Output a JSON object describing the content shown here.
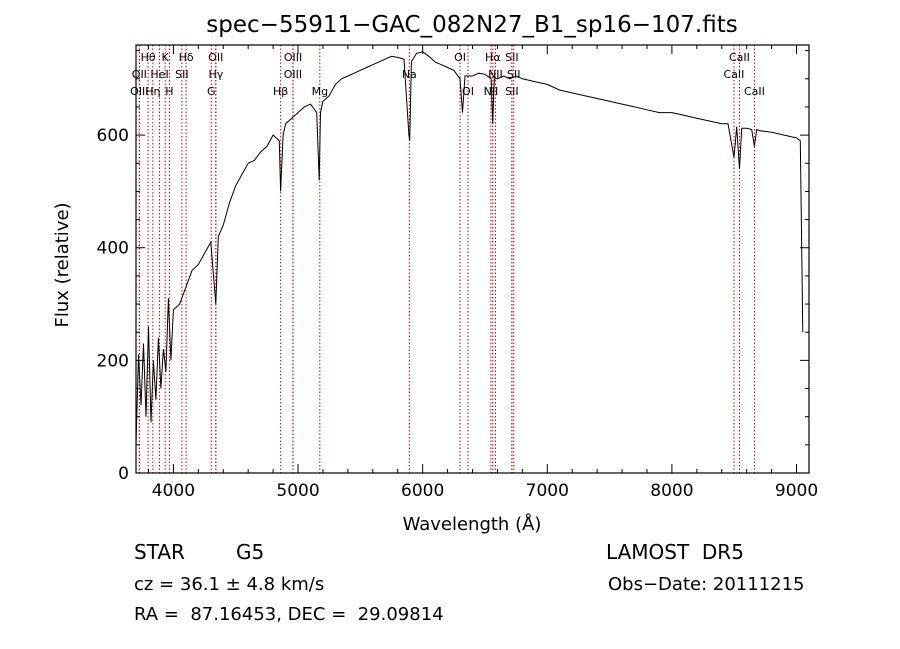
{
  "chart_data": {
    "type": "line",
    "title": "spec−55911−GAC_082N27_B1_sp16−107.fits",
    "xlabel": "Wavelength (Å)",
    "ylabel": "Flux (relative)",
    "xlim": [
      3700,
      9100
    ],
    "ylim": [
      0,
      760
    ],
    "xticks": [
      4000,
      5000,
      6000,
      7000,
      8000,
      9000
    ],
    "yticks": [
      0,
      200,
      400,
      600
    ],
    "grid": false,
    "line_color": "#000000",
    "marker_color": "#cc0000",
    "series": [
      {
        "x": [
          3700,
          3720,
          3740,
          3760,
          3780,
          3800,
          3820,
          3840,
          3860,
          3880,
          3900,
          3920,
          3940,
          3960,
          3980,
          4000,
          4050,
          4100,
          4150,
          4200,
          4250,
          4300,
          4340,
          4360,
          4400,
          4450,
          4500,
          4550,
          4600,
          4650,
          4700,
          4750,
          4800,
          4850,
          4860,
          4880,
          4900,
          4950,
          5000,
          5050,
          5100,
          5150,
          5170,
          5180,
          5200,
          5250,
          5300,
          5350,
          5400,
          5450,
          5500,
          5550,
          5600,
          5650,
          5700,
          5750,
          5800,
          5850,
          5890,
          5896,
          5910,
          5950,
          6000,
          6050,
          6100,
          6150,
          6200,
          6250,
          6300,
          6320,
          6340,
          6400,
          6450,
          6500,
          6550,
          6562,
          6575,
          6600,
          6650,
          6700,
          6750,
          6800,
          6900,
          7000,
          7100,
          7200,
          7300,
          7400,
          7500,
          7600,
          7700,
          7800,
          7900,
          8000,
          8100,
          8200,
          8300,
          8400,
          8450,
          8498,
          8520,
          8542,
          8560,
          8600,
          8640,
          8662,
          8680,
          8700,
          8800,
          8900,
          9000,
          9030,
          9050
        ],
        "y": [
          50,
          210,
          120,
          230,
          100,
          260,
          90,
          200,
          130,
          240,
          150,
          220,
          180,
          310,
          200,
          290,
          300,
          330,
          360,
          370,
          390,
          410,
          300,
          420,
          440,
          480,
          510,
          530,
          550,
          555,
          570,
          580,
          600,
          590,
          500,
          600,
          620,
          630,
          640,
          650,
          655,
          640,
          520,
          640,
          660,
          670,
          690,
          700,
          705,
          710,
          715,
          720,
          725,
          730,
          735,
          740,
          738,
          735,
          600,
          590,
          730,
          745,
          748,
          740,
          730,
          725,
          720,
          715,
          700,
          640,
          705,
          705,
          710,
          708,
          700,
          620,
          700,
          700,
          705,
          700,
          705,
          700,
          695,
          690,
          680,
          675,
          670,
          665,
          660,
          655,
          650,
          645,
          640,
          640,
          635,
          630,
          625,
          620,
          620,
          560,
          615,
          540,
          612,
          612,
          610,
          580,
          610,
          608,
          605,
          600,
          595,
          590,
          250
        ]
      }
    ],
    "spectral_lines": [
      {
        "label": "Hθ",
        "x": 3797,
        "row": 1
      },
      {
        "label": "K",
        "x": 3934,
        "row": 1
      },
      {
        "label": "Hδ",
        "x": 4102,
        "row": 1
      },
      {
        "label": "OII",
        "x": 4340,
        "row": 1
      },
      {
        "label": "OIII",
        "x": 4960,
        "row": 1
      },
      {
        "label": "OI",
        "x": 6300,
        "row": 1
      },
      {
        "label": "Hα",
        "x": 6563,
        "row": 1
      },
      {
        "label": "SII",
        "x": 6716,
        "row": 1
      },
      {
        "label": "CaII",
        "x": 8542,
        "row": 1
      },
      {
        "label": "OII",
        "x": 3727,
        "row": 2
      },
      {
        "label": "HeI",
        "x": 3889,
        "row": 2
      },
      {
        "label": "SII",
        "x": 4068,
        "row": 2
      },
      {
        "label": "Hγ",
        "x": 4341,
        "row": 2
      },
      {
        "label": "OIII",
        "x": 4959,
        "row": 2
      },
      {
        "label": "Na",
        "x": 5893,
        "row": 2
      },
      {
        "label": "NII",
        "x": 6584,
        "row": 2
      },
      {
        "label": "SII",
        "x": 6731,
        "row": 2
      },
      {
        "label": "CaII",
        "x": 8498,
        "row": 2
      },
      {
        "label": "OIII",
        "x": 3727,
        "row": 3
      },
      {
        "label": "Hη",
        "x": 3835,
        "row": 3
      },
      {
        "label": "H",
        "x": 3968,
        "row": 3
      },
      {
        "label": "G",
        "x": 4304,
        "row": 3
      },
      {
        "label": "Hβ",
        "x": 4861,
        "row": 3
      },
      {
        "label": "Mg",
        "x": 5175,
        "row": 3
      },
      {
        "label": "OI",
        "x": 6364,
        "row": 3
      },
      {
        "label": "NII",
        "x": 6548,
        "row": 3
      },
      {
        "label": "SII",
        "x": 6716,
        "row": 3
      },
      {
        "label": "CaII",
        "x": 8662,
        "row": 3
      }
    ]
  },
  "info": {
    "object_class": "STAR",
    "subclass": "G5",
    "survey": "LAMOST  DR5",
    "cz": "cz = 36.1 ± 4.8 km/s",
    "obs_date": "Obs−Date: 20111215",
    "coords": "RA =  87.16453, DEC =  29.09814"
  }
}
